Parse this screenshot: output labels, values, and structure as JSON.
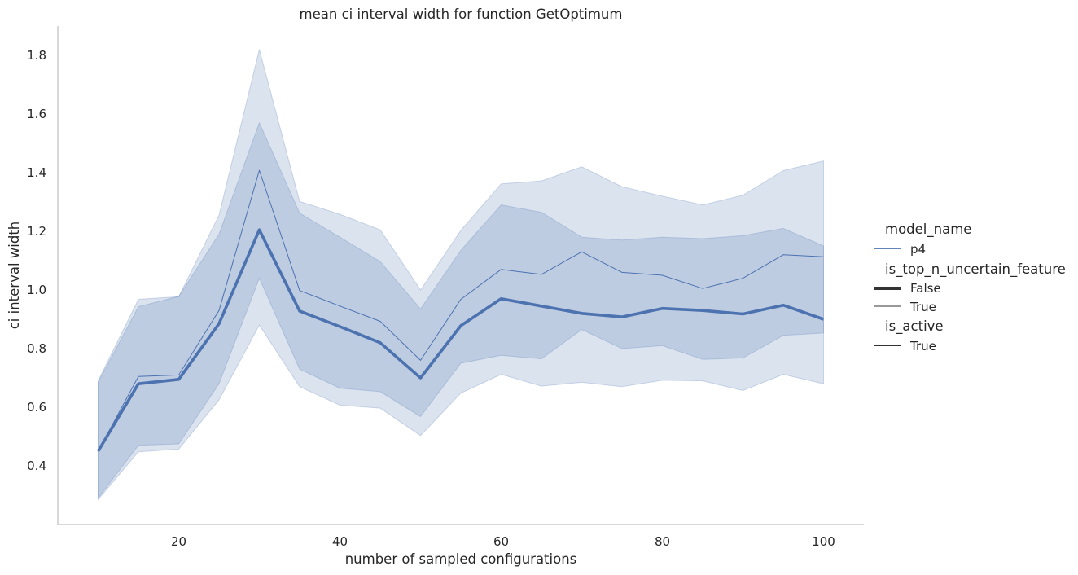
{
  "chart_data": {
    "type": "line",
    "title": "mean ci interval width for function GetOptimum",
    "xlabel": "number of sampled configurations",
    "ylabel": "ci interval width",
    "xlim": [
      5,
      105
    ],
    "ylim": [
      0.2,
      1.9
    ],
    "xticks": [
      "20",
      "40",
      "60",
      "80",
      "100"
    ],
    "yticks": [
      "0.4",
      "0.6",
      "0.8",
      "1.0",
      "1.2",
      "1.4",
      "1.6",
      "1.8"
    ],
    "grid": false,
    "legend_position": "right",
    "color": "#4c72b0",
    "x": [
      10,
      15,
      20,
      25,
      30,
      35,
      40,
      45,
      50,
      55,
      60,
      65,
      70,
      75,
      80,
      85,
      90,
      95,
      100
    ],
    "series": [
      {
        "name": "False",
        "style": "thick",
        "values": [
          0.45,
          0.68,
          0.695,
          0.885,
          1.205,
          0.928,
          0.875,
          0.82,
          0.7,
          0.878,
          0.97,
          0.945,
          0.92,
          0.908,
          0.937,
          0.93,
          0.918,
          0.948,
          0.9
        ],
        "ci_lower": [
          0.29,
          0.47,
          0.475,
          0.68,
          1.04,
          0.73,
          0.665,
          0.653,
          0.568,
          0.75,
          0.777,
          0.765,
          0.865,
          0.8,
          0.81,
          0.763,
          0.768,
          0.845,
          0.853
        ],
        "ci_upper": [
          0.685,
          0.943,
          0.978,
          1.19,
          1.57,
          1.262,
          1.18,
          1.097,
          0.935,
          1.135,
          1.29,
          1.265,
          1.18,
          1.17,
          1.18,
          1.175,
          1.185,
          1.21,
          1.15
        ]
      },
      {
        "name": "True",
        "style": "thin",
        "values": [
          0.45,
          0.705,
          0.71,
          0.93,
          1.408,
          0.998,
          0.945,
          0.893,
          0.76,
          0.968,
          1.07,
          1.053,
          1.13,
          1.06,
          1.05,
          1.005,
          1.04,
          1.12,
          1.113
        ],
        "ci_lower": [
          0.285,
          0.448,
          0.457,
          0.625,
          0.88,
          0.67,
          0.607,
          0.597,
          0.503,
          0.648,
          0.712,
          0.672,
          0.685,
          0.67,
          0.692,
          0.69,
          0.657,
          0.712,
          0.68
        ],
        "ci_upper": [
          0.69,
          0.968,
          0.977,
          1.255,
          1.82,
          1.302,
          1.258,
          1.205,
          1.0,
          1.203,
          1.362,
          1.372,
          1.42,
          1.352,
          1.32,
          1.29,
          1.323,
          1.407,
          1.44
        ]
      }
    ]
  },
  "legend": {
    "model_name": {
      "title": "model_name",
      "items": [
        "p4"
      ]
    },
    "is_top_n_uncertain_feature": {
      "title": "is_top_n_uncertain_feature",
      "items": [
        "False",
        "True"
      ]
    },
    "is_active": {
      "title": "is_active",
      "items": [
        "True"
      ]
    }
  }
}
